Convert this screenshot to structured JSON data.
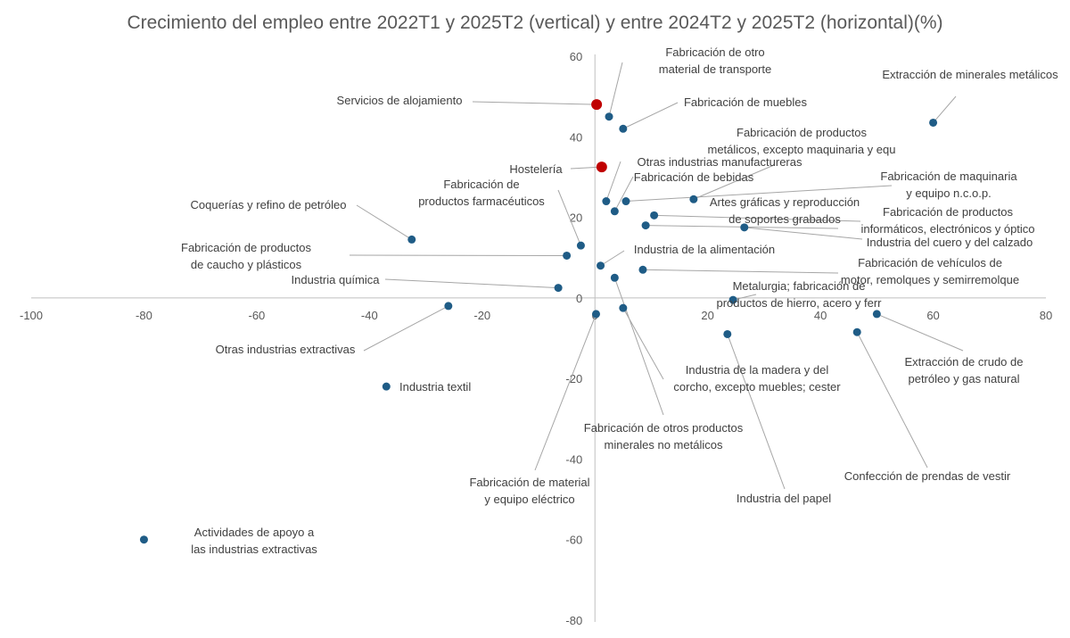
{
  "chart_data": {
    "type": "scatter",
    "title": "Crecimiento del empleo entre 2022T1 y 2025T2 (vertical) y entre 2024T2 y 2025T2 (horizontal)(%)",
    "xlabel": "",
    "ylabel": "",
    "xlim": [
      -100,
      80
    ],
    "ylim": [
      -80,
      60
    ],
    "x_ticks": [
      "-100",
      "-80",
      "-60",
      "-40",
      "-20",
      "0",
      "20",
      "40",
      "60",
      "80"
    ],
    "y_ticks": [
      "60",
      "40",
      "20",
      "0",
      "-20",
      "-40",
      "-60",
      "-80"
    ],
    "grid": false,
    "legend": "none",
    "colors": {
      "default": "#1f5c86",
      "highlight": "#c00000",
      "axis": "#bfbfbf",
      "leader": "#a6a6a6"
    },
    "points": [
      {
        "label": "Extracción de minerales metálicos",
        "x": 60,
        "y": 43.5,
        "highlight": false
      },
      {
        "label": "Fabricación de otro material de transporte",
        "x": 2.5,
        "y": 45,
        "highlight": false
      },
      {
        "label": "Servicios de alojamiento",
        "x": 0.3,
        "y": 48,
        "highlight": true
      },
      {
        "label": "Fabricación de muebles",
        "x": 5,
        "y": 42,
        "highlight": false
      },
      {
        "label": "Fabricación de productos metálicos, excepto maquinaria y equ",
        "x": 17.5,
        "y": 24.5,
        "highlight": false
      },
      {
        "label": "Hostelería",
        "x": 1.2,
        "y": 32.5,
        "highlight": true
      },
      {
        "label": "Otras industrias manufactureras",
        "x": 2,
        "y": 24,
        "highlight": false
      },
      {
        "label": "Fabricación de bebidas",
        "x": 3.5,
        "y": 21.5,
        "highlight": false
      },
      {
        "label": "Fabricación de maquinaria y equipo n.c.o.p.",
        "x": 5.5,
        "y": 24,
        "highlight": false
      },
      {
        "label": "Fabricación de productos farmacéuticos",
        "x": -2.5,
        "y": 13,
        "highlight": false
      },
      {
        "label": "Artes gráficas y reproducción de soportes grabados",
        "x": 9,
        "y": 18,
        "highlight": false
      },
      {
        "label": "Fabricación de productos informáticos, electrónicos y óptico",
        "x": 10.5,
        "y": 20.5,
        "highlight": false
      },
      {
        "label": "Industria del cuero y del calzado",
        "x": 26.5,
        "y": 17.5,
        "highlight": false
      },
      {
        "label": "Coquerías y refino de petróleo",
        "x": -32.5,
        "y": 14.5,
        "highlight": false
      },
      {
        "label": "Fabricación de productos de caucho y plásticos",
        "x": -5,
        "y": 10.5,
        "highlight": false
      },
      {
        "label": "Industria de la alimentación",
        "x": 1,
        "y": 8,
        "highlight": false
      },
      {
        "label": "Fabricación de vehículos de motor, remolques y semirremolque",
        "x": 8.5,
        "y": 7,
        "highlight": false
      },
      {
        "label": "Industria química",
        "x": -6.5,
        "y": 2.5,
        "highlight": false
      },
      {
        "label": "Metalurgia; fabricación de productos de hierro, acero y ferr",
        "x": 24.5,
        "y": -0.5,
        "highlight": false
      },
      {
        "label": "Otras industrias extractivas",
        "x": -26,
        "y": -2,
        "highlight": false
      },
      {
        "label": "Extracción de crudo de petróleo y gas natural",
        "x": 50,
        "y": -4,
        "highlight": false
      },
      {
        "label": "Industria de la madera y del corcho, excepto muebles; cester",
        "x": 5,
        "y": -2.5,
        "highlight": false
      },
      {
        "label": "Fabricación de material y equipo eléctrico",
        "x": 0.2,
        "y": -4,
        "highlight": false
      },
      {
        "label": "Confección de prendas de vestir",
        "x": 46.5,
        "y": -8.5,
        "highlight": false
      },
      {
        "label": "Industria del papel",
        "x": 23.5,
        "y": -9,
        "highlight": false
      },
      {
        "label": "Fabricación de otros productos minerales no metálicos",
        "x": 3.5,
        "y": 5,
        "highlight": false
      },
      {
        "label": "Industria textil",
        "x": -37,
        "y": -22,
        "highlight": false
      },
      {
        "label": "Actividades de apoyo a las industrias extractivas",
        "x": -80,
        "y": -60,
        "highlight": false
      }
    ]
  }
}
